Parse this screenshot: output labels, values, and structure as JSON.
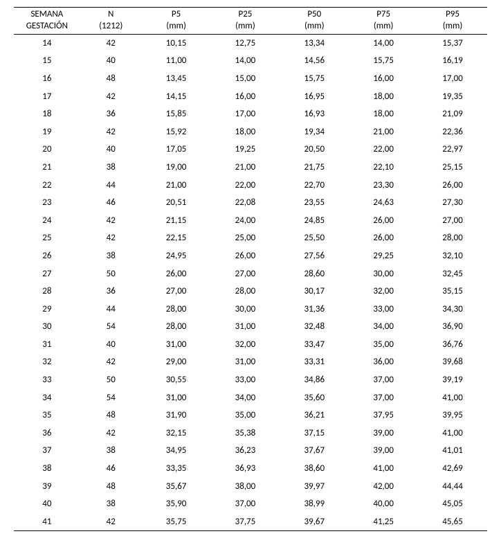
{
  "table": {
    "type": "table",
    "background_color": "#ffffff",
    "text_color": "#000000",
    "font_family": "Calibri",
    "font_size_pt": 10,
    "border_color": "#000000",
    "columns": [
      {
        "line1": "SEMANA",
        "line2": "GESTACIÓN",
        "align": "center",
        "width_pct": 14
      },
      {
        "line1": "N",
        "line2": "(1212)",
        "align": "center",
        "width_pct": 13
      },
      {
        "line1": "P5",
        "line2": "(mm)",
        "align": "center",
        "width_pct": 14.6
      },
      {
        "line1": "P25",
        "line2": "(mm)",
        "align": "center",
        "width_pct": 14.6
      },
      {
        "line1": "P50",
        "line2": "(mm)",
        "align": "center",
        "width_pct": 14.6
      },
      {
        "line1": "P75",
        "line2": "(mm)",
        "align": "center",
        "width_pct": 14.6
      },
      {
        "line1": "P95",
        "line2": "(mm)",
        "align": "center",
        "width_pct": 14.6
      }
    ],
    "rows": [
      [
        "14",
        "42",
        "10,15",
        "12,75",
        "13,34",
        "14,00",
        "15,37"
      ],
      [
        "15",
        "40",
        "11,00",
        "14,00",
        "14,56",
        "15,75",
        "16,19"
      ],
      [
        "16",
        "48",
        "13,45",
        "15,00",
        "15,75",
        "16,00",
        "17,00"
      ],
      [
        "17",
        "42",
        "14,15",
        "16,00",
        "16,95",
        "18,00",
        "19,35"
      ],
      [
        "18",
        "36",
        "15,85",
        "17,00",
        "16,93",
        "18,00",
        "21,09"
      ],
      [
        "19",
        "42",
        "15,92",
        "18,00",
        "19,34",
        "21,00",
        "22,36"
      ],
      [
        "20",
        "40",
        "17,05",
        "19,25",
        "20,50",
        "22,00",
        "22,97"
      ],
      [
        "21",
        "38",
        "19,00",
        "21,00",
        "21,75",
        "22,10",
        "25,15"
      ],
      [
        "22",
        "44",
        "21,00",
        "22,00",
        "22,70",
        "23,30",
        "26,00"
      ],
      [
        "23",
        "46",
        "20,51",
        "22,08",
        "23,55",
        "24,63",
        "27,30"
      ],
      [
        "24",
        "42",
        "21,15",
        "24,00",
        "24,85",
        "26,00",
        "27,00"
      ],
      [
        "25",
        "42",
        "22,15",
        "25,00",
        "25,50",
        "26,00",
        "28,00"
      ],
      [
        "26",
        "38",
        "24,95",
        "26,00",
        "27,56",
        "29,25",
        "32,10"
      ],
      [
        "27",
        "50",
        "26,00",
        "27,00",
        "28,60",
        "30,00",
        "32,45"
      ],
      [
        "28",
        "36",
        "27,00",
        "28,00",
        "30,17",
        "32,00",
        "35,15"
      ],
      [
        "29",
        "44",
        "28,00",
        "30,00",
        "31,36",
        "33,00",
        "34,30"
      ],
      [
        "30",
        "54",
        "28,00",
        "31,00",
        "32,48",
        "34,00",
        "36,90"
      ],
      [
        "31",
        "40",
        "31,00",
        "32,00",
        "33,47",
        "35,00",
        "36,76"
      ],
      [
        "32",
        "42",
        "29,00",
        "31,00",
        "33,31",
        "36,00",
        "39,68"
      ],
      [
        "33",
        "50",
        "30,55",
        "33,00",
        "34,86",
        "37,00",
        "39,19"
      ],
      [
        "34",
        "54",
        "31,00",
        "34,00",
        "35,60",
        "37,00",
        "41,00"
      ],
      [
        "35",
        "48",
        "31,90",
        "35,00",
        "36,21",
        "37,95",
        "39,95"
      ],
      [
        "36",
        "42",
        "32,15",
        "35,38",
        "37,15",
        "39,00",
        "41,00"
      ],
      [
        "37",
        "38",
        "34,95",
        "36,23",
        "37,67",
        "39,00",
        "41,01"
      ],
      [
        "38",
        "46",
        "33,35",
        "36,93",
        "38,60",
        "41,00",
        "42,69"
      ],
      [
        "39",
        "48",
        "35,67",
        "38,00",
        "39,97",
        "42,00",
        "44,44"
      ],
      [
        "40",
        "38",
        "35,90",
        "37,00",
        "38,99",
        "40,00",
        "45,05"
      ],
      [
        "41",
        "42",
        "35,75",
        "37,75",
        "39,67",
        "41,25",
        "45,65"
      ]
    ]
  }
}
